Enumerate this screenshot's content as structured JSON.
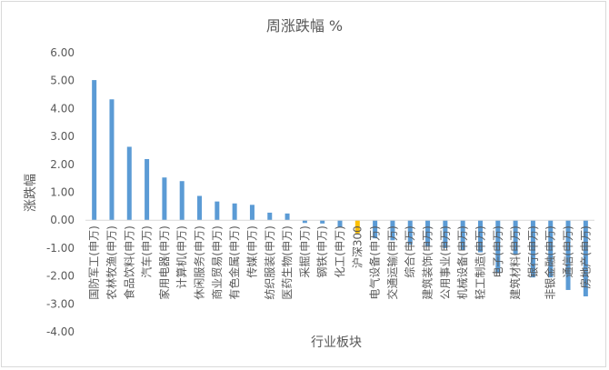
{
  "chart_data": {
    "type": "bar",
    "title": "周涨跌幅 %",
    "xlabel": "行业板块",
    "ylabel": "涨跌幅",
    "ylim": [
      -4,
      6
    ],
    "yticks": [
      "6.00",
      "5.00",
      "4.00",
      "3.00",
      "2.00",
      "1.00",
      "0.00",
      "-1.00",
      "-2.00",
      "-3.00",
      "-4.00"
    ],
    "grid": false,
    "legend": "none",
    "categories": [
      "国防军工(申万)",
      "农林牧渔(申万)",
      "食品饮料(申万)",
      "汽车(申万)",
      "家用电器(申万)",
      "计算机(申万)",
      "休闲服务(申万)",
      "商业贸易(申万)",
      "有色金属(申万)",
      "传媒(申万)",
      "纺织服装(申万)",
      "医药生物(申万)",
      "采掘(申万)",
      "钢铁(申万)",
      "化工(申万)",
      "沪深300",
      "电气设备(申万)",
      "交通运输(申万)",
      "综合(申万)",
      "建筑装饰(申万)",
      "公用事业(申万)",
      "机械设备(申万)",
      "轻工制造(申万)",
      "电子(申万)",
      "建筑材料(申万)",
      "银行(申万)",
      "非银金融(申万)",
      "通信(申万)",
      "房地产(申万)"
    ],
    "values": [
      5.02,
      4.33,
      2.63,
      2.19,
      1.53,
      1.4,
      0.87,
      0.67,
      0.6,
      0.55,
      0.27,
      0.24,
      -0.1,
      -0.12,
      -0.25,
      -0.47,
      -0.65,
      -0.72,
      -0.88,
      -0.95,
      -1.0,
      -1.08,
      -1.15,
      -1.9,
      -1.22,
      -2.05,
      -2.05,
      -2.5,
      -2.73
    ],
    "colors": {
      "bar": "#5b9bd5",
      "highlight": "#ffc000",
      "axis": "#d9d9d9",
      "text": "#595959"
    },
    "highlight_category": "沪深300"
  }
}
